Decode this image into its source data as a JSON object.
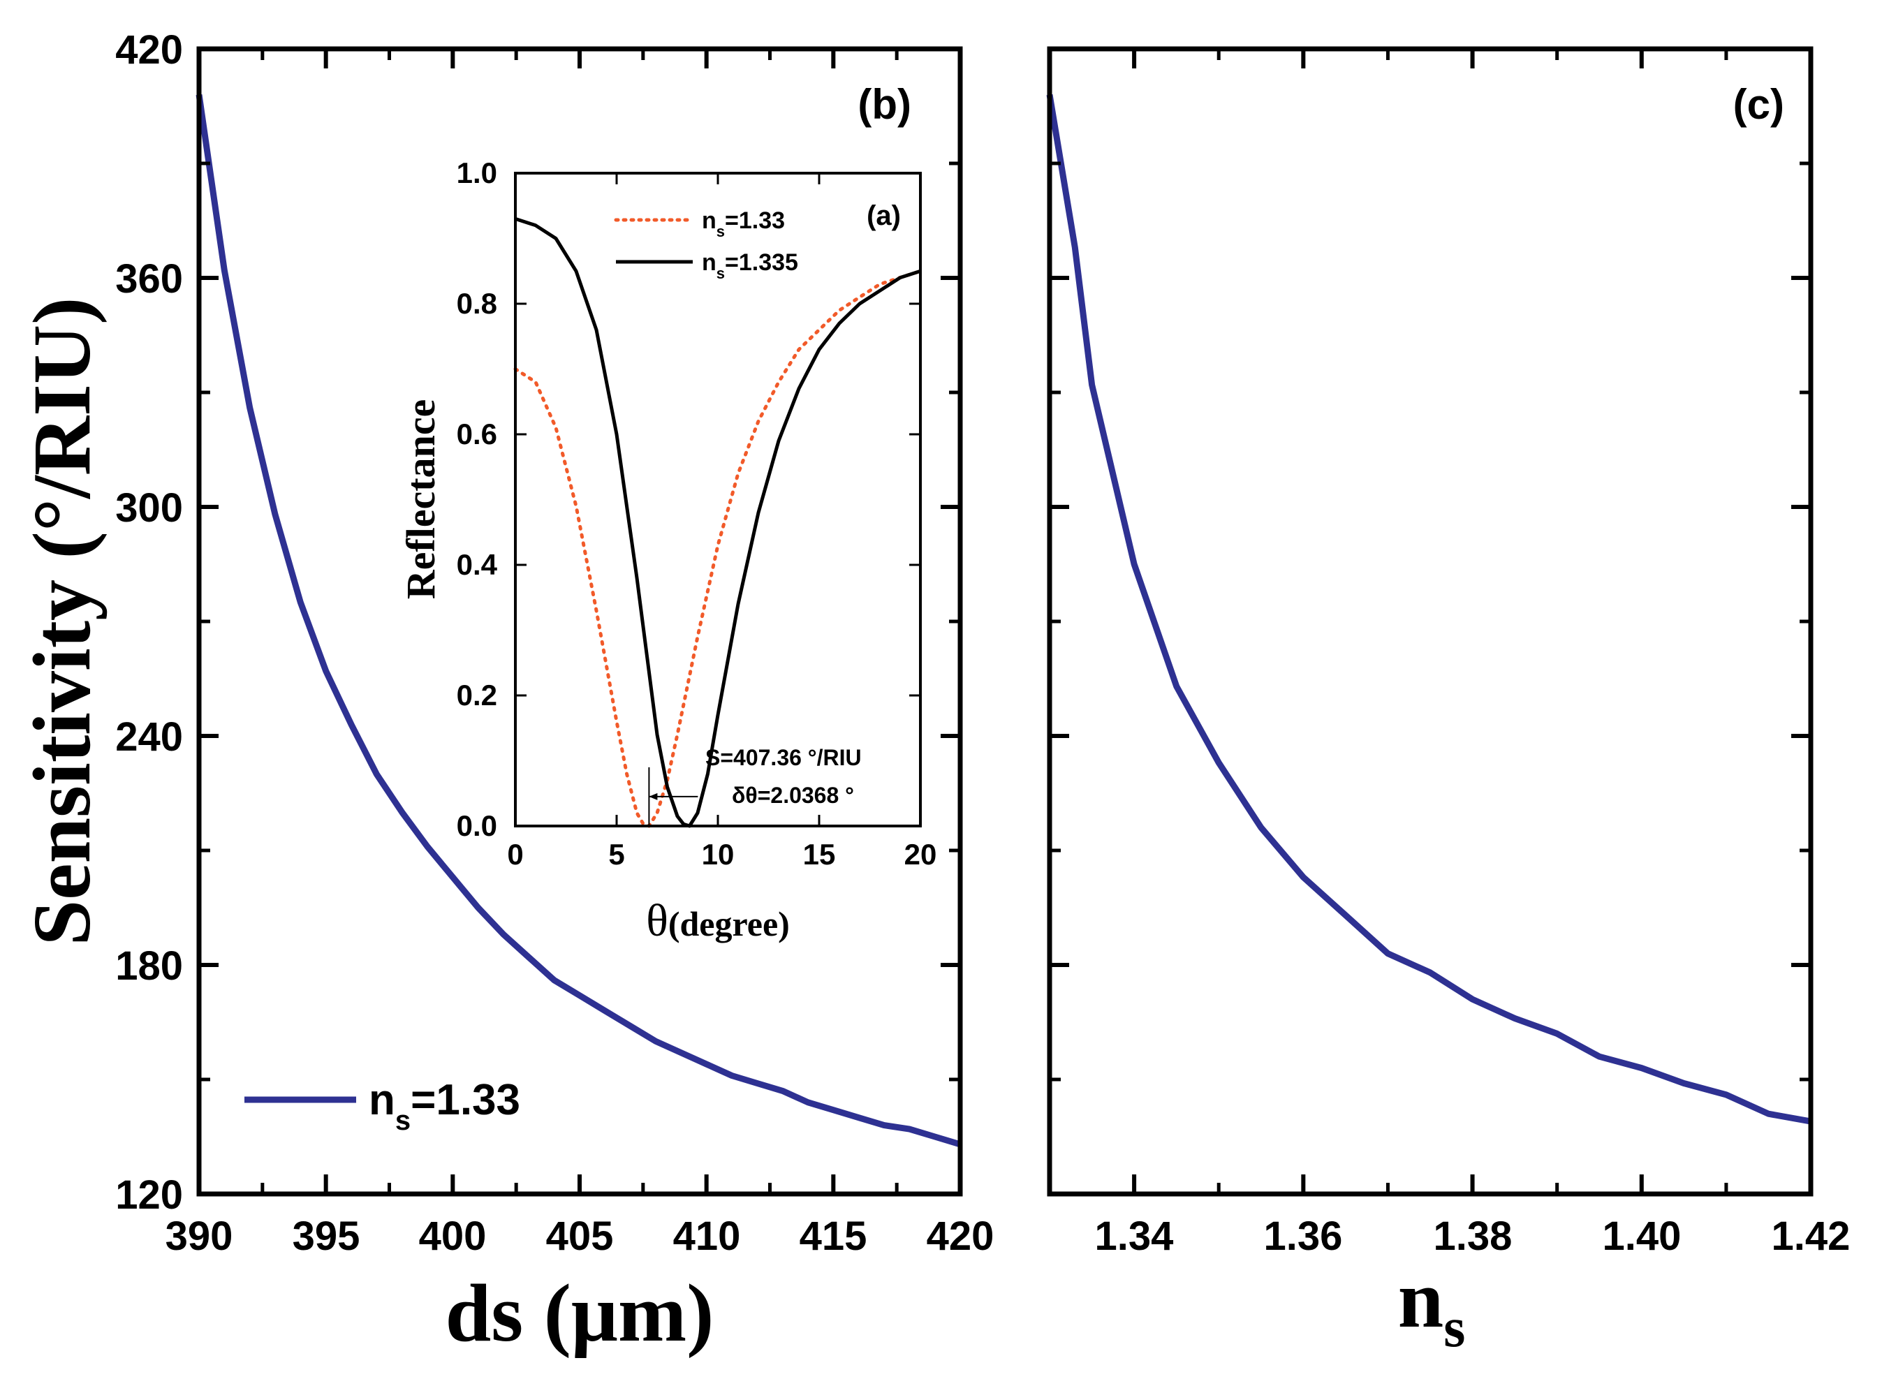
{
  "colors": {
    "main_line": "#2e3192",
    "ref_133": "#f15a29",
    "ref_1335": "#000000",
    "axis": "#000000"
  },
  "chart_data": [
    {
      "id": "b",
      "type": "line",
      "panel_label": "(b)",
      "ylabel": "Sensitivity (°/RIU)",
      "xlabel": "ds (μm)",
      "xlim": [
        390,
        420
      ],
      "ylim": [
        120,
        420
      ],
      "xticks": [
        390,
        395,
        400,
        405,
        410,
        415,
        420
      ],
      "yticks": [
        120,
        180,
        240,
        300,
        360,
        420
      ],
      "legend": {
        "prefix": "n",
        "sub": "s",
        "suffix": "=1.33",
        "location": "lower-left"
      },
      "series": [
        {
          "name": "n_s=1.33",
          "x": [
            390,
            391,
            392,
            393,
            394,
            395,
            396,
            397,
            398,
            399,
            400,
            401,
            402,
            403,
            404,
            405,
            406,
            407,
            408,
            409,
            410,
            411,
            412,
            413,
            414,
            415,
            416,
            417,
            418,
            419,
            420
          ],
          "y": [
            408,
            362,
            326,
            298,
            275,
            257,
            243,
            230,
            220,
            211,
            203,
            195,
            188,
            182,
            176,
            172,
            168,
            164,
            160,
            157,
            154,
            151,
            149,
            147,
            144,
            142,
            140,
            138,
            137,
            135,
            133
          ]
        }
      ]
    },
    {
      "id": "c",
      "type": "line",
      "panel_label": "(c)",
      "xlabel": {
        "main": "n",
        "sub": "s"
      },
      "xlim": [
        1.33,
        1.42
      ],
      "ylim": [
        120,
        420
      ],
      "xticks": [
        1.34,
        1.36,
        1.38,
        1.4,
        1.42
      ],
      "xticklabels": [
        "1.34",
        "1.36",
        "1.38",
        "1.40",
        "1.42"
      ],
      "yticks": [
        120,
        180,
        240,
        300,
        360,
        420
      ],
      "series": [
        {
          "name": "sensitivity",
          "x": [
            1.33,
            1.333,
            1.335,
            1.34,
            1.345,
            1.35,
            1.355,
            1.36,
            1.365,
            1.37,
            1.375,
            1.38,
            1.385,
            1.39,
            1.395,
            1.4,
            1.405,
            1.41,
            1.415,
            1.42
          ],
          "y": [
            408,
            368,
            332,
            285,
            253,
            233,
            216,
            203,
            193,
            183,
            178,
            171,
            166,
            162,
            156,
            153,
            149,
            146,
            141,
            139
          ]
        }
      ]
    },
    {
      "id": "a",
      "type": "line",
      "panel_label": "(a)",
      "inset_of": "b",
      "ylabel": "Reflectance",
      "xlabel": {
        "symbol": "θ",
        "rest": "(degree)"
      },
      "xlim": [
        0,
        20
      ],
      "ylim": [
        0,
        1.0
      ],
      "xticks": [
        0,
        5,
        10,
        15,
        20
      ],
      "yticks": [
        0.0,
        0.2,
        0.4,
        0.6,
        0.8,
        1.0
      ],
      "yticklabels": [
        "0.0",
        "0.2",
        "0.4",
        "0.6",
        "0.8",
        "1.0"
      ],
      "legend": [
        {
          "prefix": "n",
          "sub": "s",
          "suffix": "=1.33",
          "style": "dotted"
        },
        {
          "prefix": "n",
          "sub": "s",
          "suffix": "=1.335",
          "style": "solid"
        }
      ],
      "annotations": {
        "sensitivity": "S=407.36 °/RIU",
        "shift": "δθ=2.0368 °"
      },
      "shift_marker_x": [
        6.6,
        8.6
      ],
      "series": [
        {
          "name": "n_s=1.33",
          "style": "dotted",
          "x": [
            0,
            1,
            2,
            3,
            4,
            5,
            5.5,
            6,
            6.3,
            6.6,
            7,
            7.5,
            8,
            9,
            10,
            11,
            12,
            13,
            14,
            15,
            16,
            17,
            18,
            19,
            20
          ],
          "y": [
            0.7,
            0.68,
            0.61,
            0.49,
            0.33,
            0.16,
            0.08,
            0.02,
            0.004,
            0.0,
            0.02,
            0.07,
            0.14,
            0.29,
            0.43,
            0.54,
            0.62,
            0.68,
            0.73,
            0.76,
            0.79,
            0.81,
            0.83,
            0.84,
            0.85
          ]
        },
        {
          "name": "n_s=1.335",
          "style": "solid",
          "x": [
            0,
            1,
            2,
            3,
            4,
            5,
            6,
            6.5,
            7,
            7.5,
            8,
            8.3,
            8.6,
            9,
            9.5,
            10,
            11,
            12,
            13,
            14,
            15,
            16,
            17,
            18,
            19,
            20
          ],
          "y": [
            0.93,
            0.92,
            0.9,
            0.85,
            0.76,
            0.6,
            0.38,
            0.26,
            0.14,
            0.06,
            0.015,
            0.003,
            0.0,
            0.02,
            0.08,
            0.17,
            0.34,
            0.48,
            0.59,
            0.67,
            0.73,
            0.77,
            0.8,
            0.82,
            0.84,
            0.85
          ]
        }
      ]
    }
  ]
}
